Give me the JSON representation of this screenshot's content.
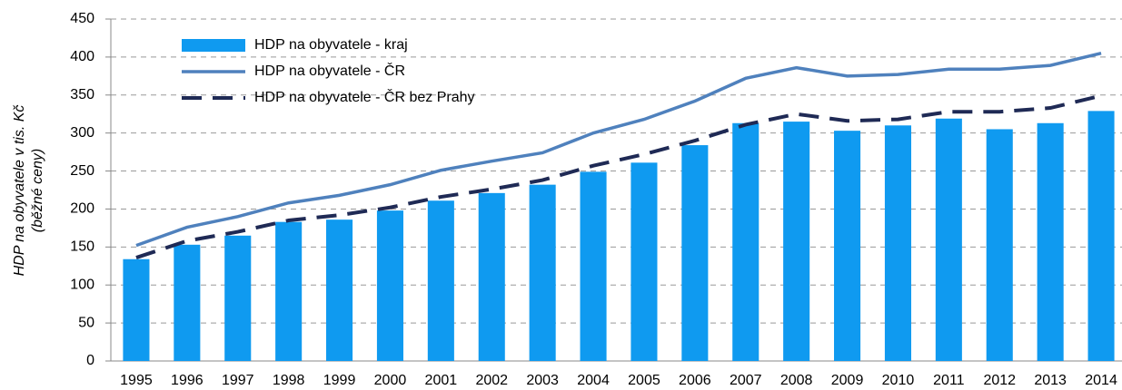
{
  "chart_data": {
    "type": "bar",
    "ylabel": [
      "HDP na obyvatele v tis. Kč",
      "(běžné ceny)"
    ],
    "categories": [
      "1995",
      "1996",
      "1997",
      "1998",
      "1999",
      "2000",
      "2001",
      "2002",
      "2003",
      "2004",
      "2005",
      "2006",
      "2007",
      "2008",
      "2009",
      "2010",
      "2011",
      "2012",
      "2013",
      "2014"
    ],
    "series": [
      {
        "name": "HDP na obyvatele - kraj",
        "type": "bar",
        "color": "#0f9af0",
        "values": [
          134,
          153,
          165,
          183,
          186,
          198,
          211,
          221,
          232,
          249,
          261,
          284,
          313,
          315,
          303,
          310,
          319,
          305,
          313,
          329
        ]
      },
      {
        "name": "HDP na obyvatele - ČR",
        "type": "line",
        "color": "#4f81bd",
        "values": [
          152,
          176,
          190,
          208,
          218,
          232,
          251,
          263,
          274,
          300,
          318,
          342,
          372,
          386,
          375,
          377,
          384,
          384,
          389,
          405
        ]
      },
      {
        "name": "HDP na obyvatele - ČR bez Prahy",
        "type": "dashed",
        "color": "#1f2a55",
        "values": [
          136,
          158,
          170,
          185,
          192,
          202,
          216,
          226,
          238,
          257,
          272,
          290,
          311,
          325,
          316,
          318,
          328,
          328,
          333,
          349
        ]
      }
    ],
    "ylim": [
      0,
      450
    ],
    "yticks": [
      0,
      50,
      100,
      150,
      200,
      250,
      300,
      350,
      400,
      450
    ],
    "grid": true,
    "legend": "upper-left"
  }
}
